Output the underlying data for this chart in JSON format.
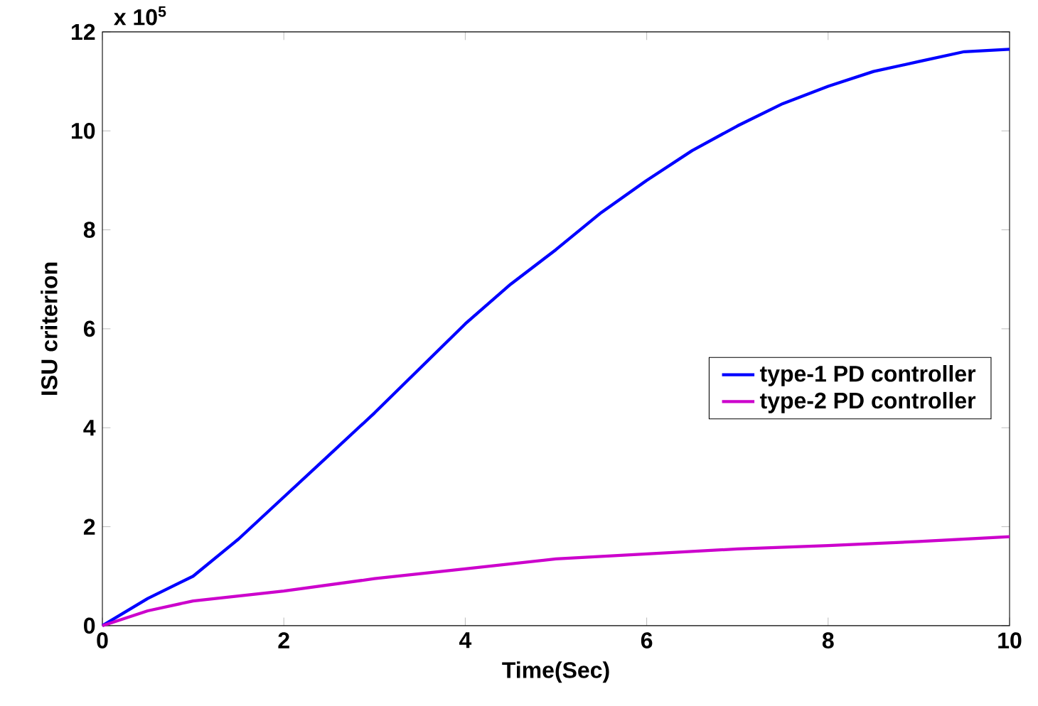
{
  "chart_data": {
    "type": "line",
    "xlabel": "Time(Sec)",
    "ylabel": "ISU criterion",
    "annotations": [
      "x 10$^{5}$"
    ],
    "xlim": [
      0,
      10
    ],
    "ylim": [
      0,
      12
    ],
    "xticks": [
      0,
      2,
      4,
      6,
      8,
      10
    ],
    "yticks": [
      0,
      2,
      4,
      6,
      8,
      10,
      12
    ],
    "grid": false,
    "legend": "right",
    "line_style": "solid",
    "marker": "none",
    "series": [
      {
        "name": "type-1 PD controller",
        "color": "#0000ff",
        "x": [
          0,
          0.5,
          1,
          1.5,
          2,
          2.5,
          3,
          3.5,
          4,
          4.5,
          5,
          5.5,
          6,
          6.5,
          7,
          7.5,
          8,
          8.5,
          9,
          9.5,
          10
        ],
        "values": [
          0,
          0.55,
          1.0,
          1.75,
          2.6,
          3.45,
          4.3,
          5.2,
          6.1,
          6.9,
          7.6,
          8.35,
          9.0,
          9.6,
          10.1,
          10.55,
          10.9,
          11.2,
          11.4,
          11.6,
          11.65
        ]
      },
      {
        "name": "type-2 PD controller",
        "color": "#cc00cc",
        "x": [
          0,
          0.5,
          1,
          1.5,
          2,
          3,
          4,
          5,
          6,
          7,
          8,
          9,
          10
        ],
        "values": [
          0,
          0.3,
          0.5,
          0.6,
          0.7,
          0.95,
          1.15,
          1.35,
          1.45,
          1.55,
          1.62,
          1.7,
          1.8
        ]
      }
    ]
  }
}
